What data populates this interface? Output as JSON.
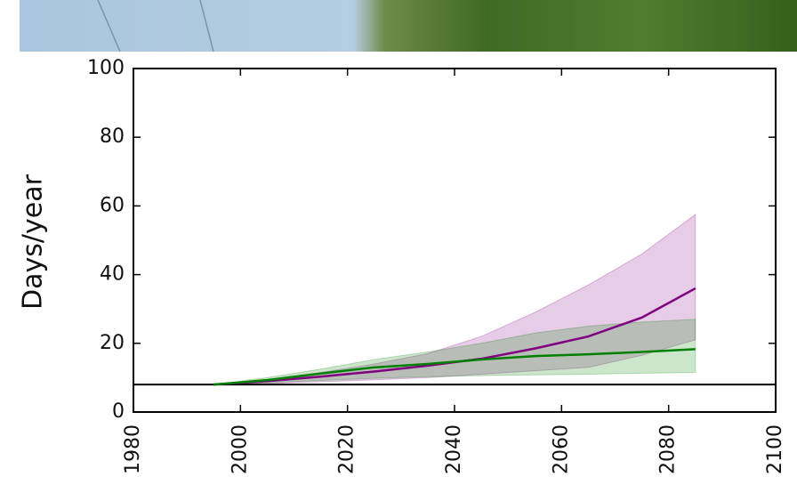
{
  "chart_data": {
    "type": "line",
    "ylabel": "Days/year",
    "x": [
      1995,
      2005,
      2015,
      2025,
      2035,
      2045,
      2055,
      2065,
      2075,
      2085
    ],
    "series": [
      {
        "color": "#800080",
        "values": [
          8,
          9,
          10.3,
          11.8,
          13.5,
          15.5,
          18.5,
          22,
          27.5,
          36
        ],
        "upper": [
          8,
          9.5,
          11.5,
          14,
          17,
          22,
          29,
          37,
          46,
          57.5
        ],
        "lower": [
          8,
          8.3,
          8.8,
          9.4,
          10,
          11,
          12,
          13,
          16.5,
          21
        ]
      },
      {
        "color": "#008000",
        "values": [
          8,
          9.3,
          11.2,
          13,
          14,
          15.3,
          16.3,
          16.8,
          17.5,
          18.3
        ],
        "upper": [
          8,
          10,
          12.5,
          15.3,
          17.5,
          20,
          23,
          25,
          26.2,
          27
        ],
        "lower": [
          8,
          8.5,
          9.2,
          9.8,
          10.3,
          10.6,
          10.8,
          11,
          11.3,
          11.5
        ]
      }
    ],
    "hline": 8,
    "xlim": [
      1980,
      2100
    ],
    "xticks": [
      1980,
      2000,
      2020,
      2040,
      2060,
      2080,
      2100
    ],
    "ylim": [
      0,
      100
    ],
    "yticks": [
      0,
      20,
      40,
      60,
      80,
      100
    ]
  }
}
